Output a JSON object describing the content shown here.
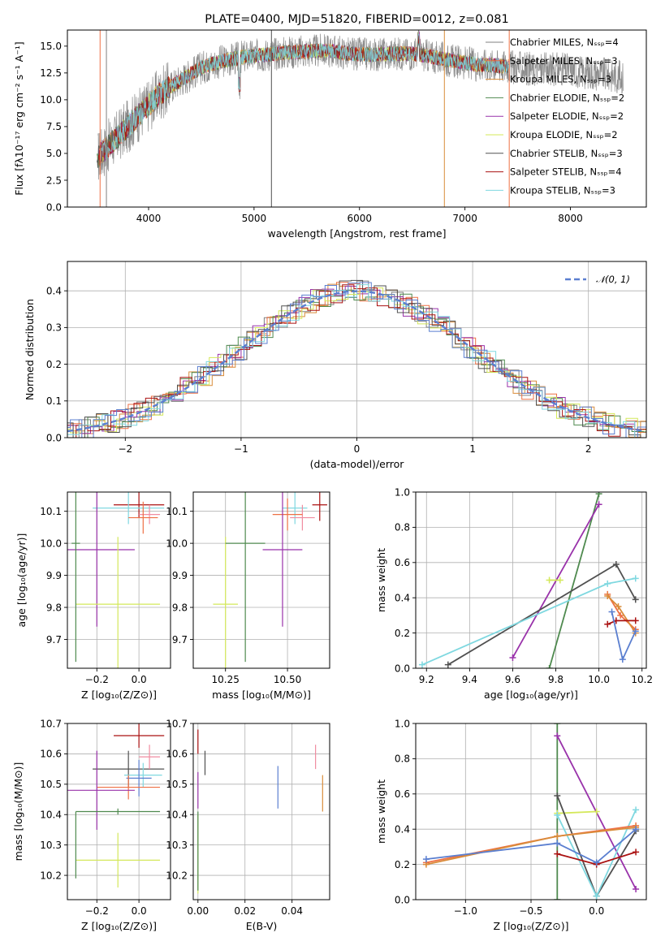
{
  "colors": {
    "chabrier_miles": "#808080",
    "salpeter_miles": "#ee7044",
    "kroupa_miles": "#d98c3a",
    "chabrier_elodie": "#4f8a4f",
    "salpeter_elodie": "#9932aa",
    "kroupa_elodie": "#d4e85a",
    "chabrier_stelib": "#505050",
    "salpeter_stelib": "#aa1111",
    "kroupa_stelib": "#7fd8e0",
    "extra_blue": "#5b7fd0",
    "extra_pink": "#f08ca0",
    "normal": "#5b7fd0"
  },
  "chart_data": [
    {
      "id": "spectrum",
      "type": "line",
      "title": "PLATE=0400, MJD=51820, FIBERID=0012, z=0.081",
      "xlabel": "wavelength [Angstrom, rest frame]",
      "ylabel": "Flux [fλ10⁻¹⁷ erg cm⁻² s⁻¹ A⁻¹]",
      "xlim": [
        3230,
        8720
      ],
      "ylim": [
        0,
        16.5
      ],
      "xticks": [
        "4000",
        "5000",
        "6000",
        "7000",
        "8000"
      ],
      "yticks": [
        "0.0",
        "2.5",
        "5.0",
        "7.5",
        "10.0",
        "12.5",
        "15.0"
      ],
      "grid": false,
      "legend_position": "right",
      "x": [
        3500,
        3700,
        3900,
        4100,
        4300,
        4500,
        4700,
        4900,
        5100,
        5300,
        5500,
        5700,
        5900,
        6100,
        6300,
        6500,
        6700,
        6900,
        7100,
        7300,
        7500,
        7700,
        7900,
        8100,
        8300,
        8500
      ],
      "y": [
        4.5,
        6.5,
        8.5,
        10.5,
        11.8,
        13.0,
        13.6,
        14.0,
        14.2,
        14.4,
        14.5,
        14.6,
        14.3,
        14.2,
        14.3,
        14.3,
        14.0,
        13.6,
        13.3,
        13.2,
        13.0,
        12.8,
        12.9,
        12.6,
        12.4,
        12.1
      ],
      "series": [
        {
          "name": "Chabrier MILES, Nₛₛₚ=4",
          "color_key": "chabrier_miles"
        },
        {
          "name": "Salpeter MILES, Nₛₛₚ=3",
          "color_key": "salpeter_miles"
        },
        {
          "name": "Kroupa MILES, Nₛₛₚ=3",
          "color_key": "kroupa_miles"
        },
        {
          "name": "Chabrier ELODIE, Nₛₛₚ=2",
          "color_key": "chabrier_elodie"
        },
        {
          "name": "Salpeter ELODIE, Nₛₛₚ=2",
          "color_key": "salpeter_elodie"
        },
        {
          "name": "Kroupa ELODIE, Nₛₛₚ=2",
          "color_key": "kroupa_elodie"
        },
        {
          "name": "Chabrier STELIB, Nₛₛₚ=3",
          "color_key": "chabrier_stelib"
        },
        {
          "name": "Salpeter STELIB, Nₛₛₚ=4",
          "color_key": "salpeter_stelib"
        },
        {
          "name": "Kroupa STELIB, Nₛₛₚ=3",
          "color_key": "kroupa_stelib"
        }
      ]
    },
    {
      "id": "histogram",
      "type": "line",
      "xlabel": "(data-model)/error",
      "ylabel": "Normed distribution",
      "xlim": [
        -2.5,
        2.5
      ],
      "ylim": [
        0,
        0.48
      ],
      "xticks": [
        "−2",
        "−1",
        "0",
        "1",
        "2"
      ],
      "yticks": [
        "0.0",
        "0.1",
        "0.2",
        "0.3",
        "0.4"
      ],
      "grid": true,
      "legend_position": "top-right",
      "legend": "𝒩(0, 1)",
      "bin_width": 0.1
    },
    {
      "id": "age_vs_z",
      "type": "scatter",
      "xlabel": "Z [log₁₀(Z/Z⊙)]",
      "ylabel": "age  [log₁₀(age/yr)]",
      "xlim": [
        -0.34,
        0.15
      ],
      "ylim": [
        9.61,
        10.16
      ],
      "xticks": [
        "−0.2",
        "0.0"
      ],
      "yticks": [
        "9.7",
        "9.8",
        "9.9",
        "10.0",
        "10.1"
      ],
      "grid": true,
      "points": [
        {
          "x": 0.0,
          "y": 10.12,
          "xerr": 0.12,
          "yerr": 0.04,
          "c": "salpeter_stelib"
        },
        {
          "x": -0.05,
          "y": 10.11,
          "xerr": 0.17,
          "yerr": 0.05,
          "c": "kroupa_stelib"
        },
        {
          "x": 0.05,
          "y": 10.09,
          "xerr": 0.05,
          "yerr": 0.03,
          "c": "extra_pink"
        },
        {
          "x": 0.02,
          "y": 10.08,
          "xerr": 0.07,
          "yerr": 0.05,
          "c": "salpeter_miles"
        },
        {
          "x": -0.2,
          "y": 9.98,
          "xerr": 0.18,
          "yerr": 0.24,
          "c": "salpeter_elodie"
        },
        {
          "x": -0.1,
          "y": 9.81,
          "xerr": 0.2,
          "yerr": 0.21,
          "c": "kroupa_elodie"
        },
        {
          "x": -0.3,
          "y": 10.0,
          "xerr": 0.02,
          "yerr": 0.37,
          "c": "chabrier_elodie"
        }
      ]
    },
    {
      "id": "age_vs_mass",
      "type": "scatter",
      "xlabel": "mass [log₁₀(M/M⊙)]",
      "ylabel": "",
      "xlim": [
        10.12,
        10.67
      ],
      "ylim": [
        9.61,
        10.16
      ],
      "xticks": [
        "10.25",
        "10.50"
      ],
      "yticks": [
        "9.7",
        "9.8",
        "9.9",
        "10.0",
        "10.1"
      ],
      "grid": true,
      "points": [
        {
          "x": 10.63,
          "y": 10.12,
          "xerr": 0.03,
          "yerr": 0.05,
          "c": "salpeter_stelib"
        },
        {
          "x": 10.53,
          "y": 10.11,
          "xerr": 0.05,
          "yerr": 0.05,
          "c": "kroupa_stelib"
        },
        {
          "x": 10.56,
          "y": 10.08,
          "xerr": 0.05,
          "yerr": 0.04,
          "c": "extra_pink"
        },
        {
          "x": 10.5,
          "y": 10.09,
          "xerr": 0.06,
          "yerr": 0.05,
          "c": "salpeter_miles"
        },
        {
          "x": 10.48,
          "y": 9.98,
          "xerr": 0.08,
          "yerr": 0.24,
          "c": "salpeter_elodie"
        },
        {
          "x": 10.25,
          "y": 9.81,
          "xerr": 0.05,
          "yerr": 0.21,
          "c": "kroupa_elodie"
        },
        {
          "x": 10.33,
          "y": 10.0,
          "xerr": 0.08,
          "yerr": 0.37,
          "c": "chabrier_elodie"
        }
      ]
    },
    {
      "id": "weight_vs_age",
      "type": "line",
      "xlabel": "age  [log₁₀(age/yr)]",
      "ylabel": "mass weight",
      "xlim": [
        9.15,
        10.22
      ],
      "ylim": [
        0,
        1
      ],
      "xticks": [
        "9.2",
        "9.4",
        "9.6",
        "9.8",
        "10.0",
        "10.2"
      ],
      "yticks": [
        "0.0",
        "0.2",
        "0.4",
        "0.6",
        "0.8",
        "1.0"
      ],
      "grid": true,
      "series": [
        {
          "c": "chabrier_elodie",
          "x": [
            9.77,
            10.0
          ],
          "y": [
            0.0,
            0.99
          ]
        },
        {
          "c": "salpeter_elodie",
          "x": [
            9.6,
            10.0
          ],
          "y": [
            0.06,
            0.93
          ]
        },
        {
          "c": "kroupa_elodie",
          "x": [
            9.77,
            9.82
          ],
          "y": [
            0.5,
            0.5
          ]
        },
        {
          "c": "chabrier_stelib",
          "x": [
            9.3,
            10.08,
            10.17
          ],
          "y": [
            0.02,
            0.59,
            0.39
          ]
        },
        {
          "c": "kroupa_stelib",
          "x": [
            9.18,
            10.04,
            10.17
          ],
          "y": [
            0.02,
            0.48,
            0.51
          ]
        },
        {
          "c": "salpeter_miles",
          "x": [
            10.04,
            10.1,
            10.17
          ],
          "y": [
            0.42,
            0.3,
            0.22
          ]
        },
        {
          "c": "kroupa_miles",
          "x": [
            10.04,
            10.09,
            10.17
          ],
          "y": [
            0.41,
            0.35,
            0.2
          ]
        },
        {
          "c": "salpeter_stelib",
          "x": [
            10.04,
            10.08,
            10.17
          ],
          "y": [
            0.25,
            0.27,
            0.27
          ]
        },
        {
          "c": "extra_blue",
          "x": [
            10.06,
            10.11,
            10.17
          ],
          "y": [
            0.32,
            0.05,
            0.21
          ]
        }
      ]
    },
    {
      "id": "mass_vs_z",
      "type": "scatter",
      "xlabel": "Z [log₁₀(Z/Z⊙)]",
      "ylabel": "mass [log₁₀(M/M⊙)]",
      "xlim": [
        -0.34,
        0.15
      ],
      "ylim": [
        10.12,
        10.7
      ],
      "xticks": [
        "−0.2",
        "0.0"
      ],
      "yticks": [
        "10.2",
        "10.3",
        "10.4",
        "10.5",
        "10.6",
        "10.7"
      ],
      "grid": true,
      "points": [
        {
          "x": 0.0,
          "y": 10.66,
          "xerr": 0.12,
          "yerr": 0.04,
          "c": "salpeter_stelib"
        },
        {
          "x": -0.05,
          "y": 10.55,
          "xerr": 0.17,
          "yerr": 0.06,
          "c": "chabrier_stelib"
        },
        {
          "x": 0.05,
          "y": 10.59,
          "xerr": 0.05,
          "yerr": 0.04,
          "c": "extra_pink"
        },
        {
          "x": 0.02,
          "y": 10.53,
          "xerr": 0.09,
          "yerr": 0.04,
          "c": "kroupa_stelib"
        },
        {
          "x": 0.0,
          "y": 10.52,
          "xerr": 0.06,
          "yerr": 0.06,
          "c": "extra_blue"
        },
        {
          "x": -0.05,
          "y": 10.49,
          "xerr": 0.15,
          "yerr": 0.04,
          "c": "salpeter_miles"
        },
        {
          "x": -0.2,
          "y": 10.48,
          "xerr": 0.18,
          "yerr": 0.13,
          "c": "salpeter_elodie"
        },
        {
          "x": -0.1,
          "y": 10.25,
          "xerr": 0.2,
          "yerr": 0.09,
          "c": "kroupa_elodie"
        },
        {
          "x": -0.1,
          "y": 10.41,
          "xerr": 0.2,
          "yerr": 0.01,
          "c": "chabrier_elodie"
        },
        {
          "x": -0.3,
          "y": 10.3,
          "xerr": 0.0,
          "yerr": 0.11,
          "c": "chabrier_elodie"
        }
      ]
    },
    {
      "id": "mass_vs_ebv",
      "type": "scatter",
      "xlabel": "E(B-V)",
      "ylabel": "",
      "xlim": [
        -0.002,
        0.056
      ],
      "ylim": [
        10.12,
        10.7
      ],
      "xticks": [
        "0.00",
        "0.02",
        "0.04"
      ],
      "yticks": [
        "10.2",
        "10.3",
        "10.4",
        "10.5",
        "10.6",
        "10.7"
      ],
      "grid": true,
      "points": [
        {
          "x": 0.0,
          "y": 10.64,
          "xerr": 0,
          "yerr": 0.04,
          "c": "salpeter_stelib"
        },
        {
          "x": 0.003,
          "y": 10.57,
          "xerr": 0,
          "yerr": 0.04,
          "c": "chabrier_stelib"
        },
        {
          "x": 0.0,
          "y": 10.48,
          "xerr": 0,
          "yerr": 0.06,
          "c": "salpeter_elodie"
        },
        {
          "x": 0.0,
          "y": 10.27,
          "xerr": 0,
          "yerr": 0.13,
          "c": "kroupa_elodie"
        },
        {
          "x": 0.0,
          "y": 10.28,
          "xerr": 0,
          "yerr": 0.13,
          "c": "chabrier_elodie"
        },
        {
          "x": 0.034,
          "y": 10.49,
          "xerr": 0,
          "yerr": 0.07,
          "c": "extra_blue"
        },
        {
          "x": 0.05,
          "y": 10.59,
          "xerr": 0,
          "yerr": 0.04,
          "c": "extra_pink"
        },
        {
          "x": 0.053,
          "y": 10.47,
          "xerr": 0,
          "yerr": 0.06,
          "c": "kroupa_miles"
        }
      ]
    },
    {
      "id": "weight_vs_z",
      "type": "line",
      "xlabel": "Z [log₁₀(Z/Z⊙)]",
      "ylabel": "mass weight",
      "xlim": [
        -1.38,
        0.38
      ],
      "ylim": [
        0,
        1
      ],
      "xticks": [
        "−1.0",
        "−0.5",
        "0.0"
      ],
      "yticks": [
        "0.0",
        "0.2",
        "0.4",
        "0.6",
        "0.8",
        "1.0"
      ],
      "grid": true,
      "series": [
        {
          "c": "chabrier_elodie",
          "x": [
            -0.3,
            -0.3
          ],
          "y": [
            0.0,
            1.0
          ]
        },
        {
          "c": "salpeter_elodie",
          "x": [
            -0.3,
            0.3
          ],
          "y": [
            0.93,
            0.06
          ]
        },
        {
          "c": "kroupa_elodie",
          "x": [
            -0.3,
            0.0
          ],
          "y": [
            0.49,
            0.5
          ]
        },
        {
          "c": "chabrier_stelib",
          "x": [
            -0.3,
            0.0,
            0.3
          ],
          "y": [
            0.59,
            0.02,
            0.39
          ]
        },
        {
          "c": "kroupa_stelib",
          "x": [
            -0.3,
            0.0,
            0.3
          ],
          "y": [
            0.48,
            0.02,
            0.51
          ]
        },
        {
          "c": "salpeter_miles",
          "x": [
            -1.3,
            -0.3,
            0.3
          ],
          "y": [
            0.21,
            0.36,
            0.42
          ]
        },
        {
          "c": "kroupa_miles",
          "x": [
            -1.3,
            -0.3,
            0.3
          ],
          "y": [
            0.2,
            0.36,
            0.41
          ]
        },
        {
          "c": "salpeter_stelib",
          "x": [
            -0.3,
            0.0,
            0.3
          ],
          "y": [
            0.26,
            0.2,
            0.27
          ]
        },
        {
          "c": "extra_blue",
          "x": [
            -1.3,
            -0.3,
            0.0,
            0.3
          ],
          "y": [
            0.23,
            0.32,
            0.21,
            0.4
          ]
        }
      ]
    }
  ]
}
